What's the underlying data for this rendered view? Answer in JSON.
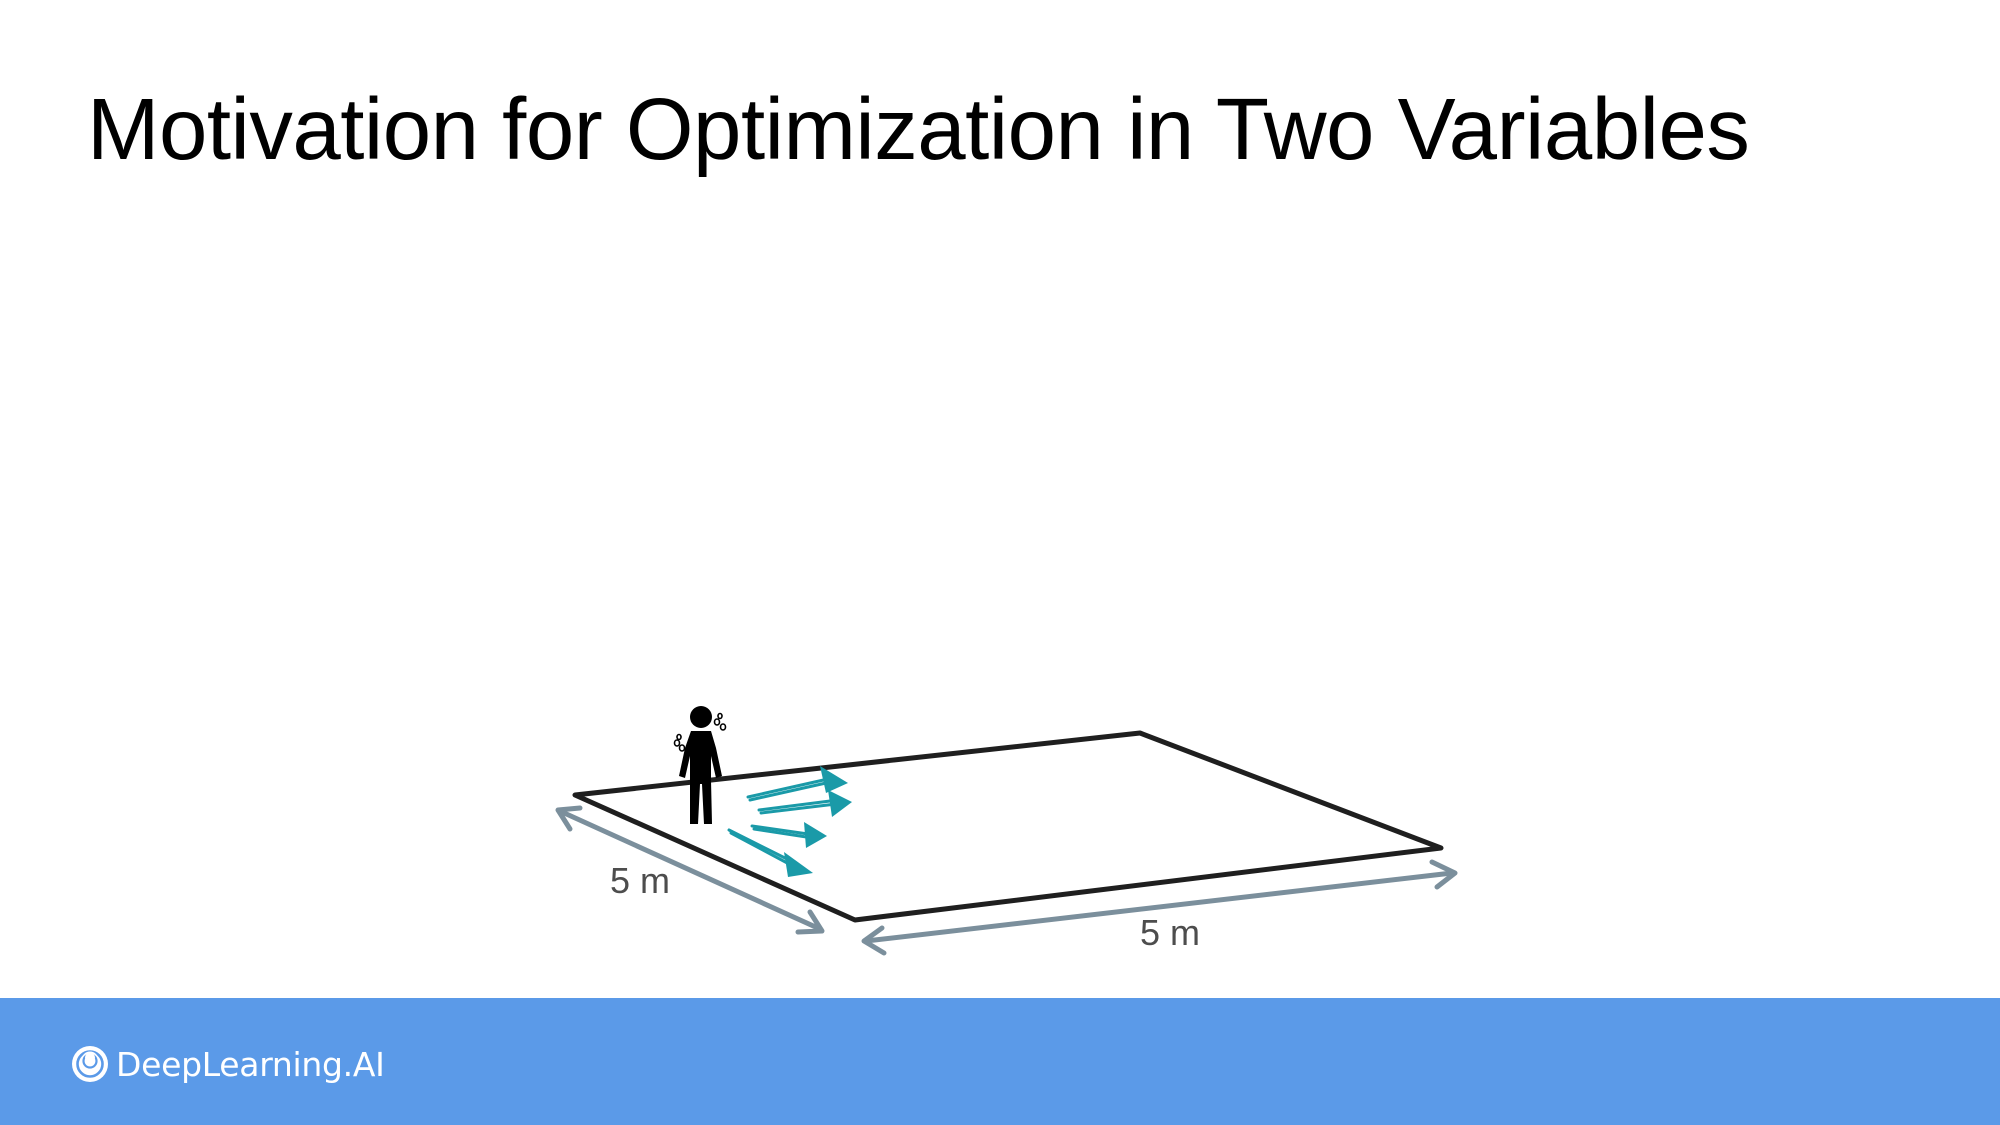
{
  "slide": {
    "title": "Motivation for Optimization in Two Variables"
  },
  "diagram": {
    "depth_label": "5 m",
    "width_label": "5 m",
    "colors": {
      "outline": "#1f1f1f",
      "dimension_arrow": "#7b8f9c",
      "motion_arrow": "#1a9aa8",
      "person": "#000000"
    },
    "icons": [
      "person-icon",
      "sweat-drops-icon",
      "motion-arrow-icon"
    ]
  },
  "footer": {
    "brand_name": "DeepLearning.AI",
    "background_color": "#5b9ae8",
    "logo_icon": "deeplearning-logo-icon"
  }
}
